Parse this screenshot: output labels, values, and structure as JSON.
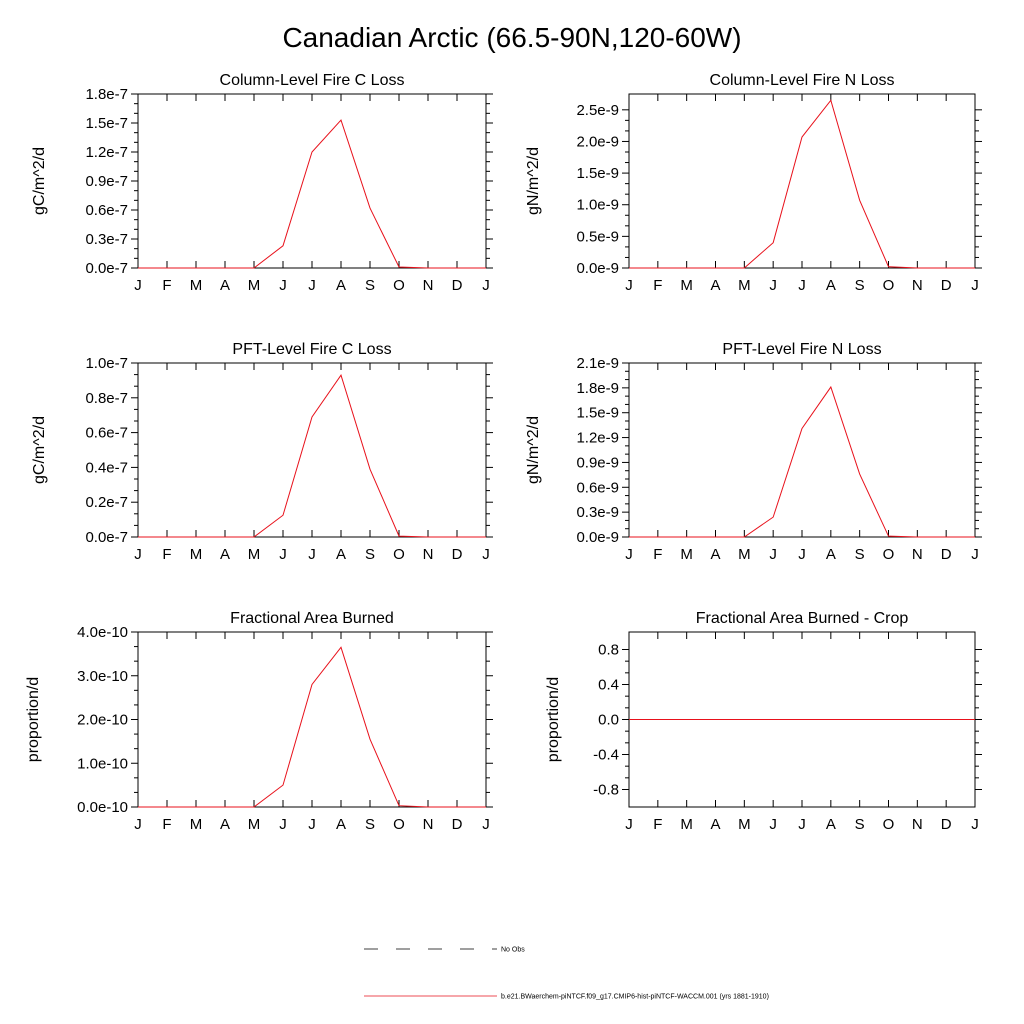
{
  "title": "Canadian Arctic (66.5-90N,120-60W)",
  "months": [
    "J",
    "F",
    "M",
    "A",
    "M",
    "J",
    "J",
    "A",
    "S",
    "O",
    "N",
    "D",
    "J"
  ],
  "line_color": "#e8111b",
  "legend": {
    "no_obs": "No Obs",
    "model": "b.e21.BWaerchem-piNTCF.f09_g17.CMIP6-hist-piNTCF-WACCM.001 (yrs 1881-1910)"
  },
  "chart_data": [
    {
      "type": "line",
      "title": "Column-Level Fire C Loss",
      "ylabel": "gC/m^2/d",
      "ylim": [
        0,
        1.8e-07
      ],
      "yticks": [
        0,
        3e-08,
        6e-08,
        9e-08,
        1.2e-07,
        1.5e-07,
        1.8e-07
      ],
      "ytick_labels": [
        "0.0e-7",
        "0.3e-7",
        "0.6e-7",
        "0.9e-7",
        "1.2e-7",
        "1.5e-7",
        "1.8e-7"
      ],
      "x": [
        "J",
        "F",
        "M",
        "A",
        "M",
        "J",
        "J",
        "A",
        "S",
        "O",
        "N",
        "D",
        "J"
      ],
      "series": [
        {
          "values": [
            0,
            0,
            0,
            0,
            0,
            2.3e-08,
            1.2e-07,
            1.53e-07,
            6.2e-08,
            1e-09,
            0,
            0,
            0
          ]
        }
      ]
    },
    {
      "type": "line",
      "title": "Column-Level Fire N Loss",
      "ylabel": "gN/m^2/d",
      "ylim": [
        0,
        2.75e-09
      ],
      "yticks": [
        0,
        5e-10,
        1e-09,
        1.5e-09,
        2e-09,
        2.5e-09
      ],
      "ytick_labels": [
        "0.0e-9",
        "0.5e-9",
        "1.0e-9",
        "1.5e-9",
        "2.0e-9",
        "2.5e-9"
      ],
      "x": [
        "J",
        "F",
        "M",
        "A",
        "M",
        "J",
        "J",
        "A",
        "S",
        "O",
        "N",
        "D",
        "J"
      ],
      "series": [
        {
          "values": [
            0,
            0,
            0,
            0,
            0,
            4e-10,
            2.07e-09,
            2.65e-09,
            1.07e-09,
            2e-11,
            0,
            0,
            0
          ]
        }
      ]
    },
    {
      "type": "line",
      "title": "PFT-Level Fire C Loss",
      "ylabel": "gC/m^2/d",
      "ylim": [
        0,
        1e-07
      ],
      "yticks": [
        0,
        2e-08,
        4e-08,
        6e-08,
        8e-08,
        1e-07
      ],
      "ytick_labels": [
        "0.0e-7",
        "0.2e-7",
        "0.4e-7",
        "0.6e-7",
        "0.8e-7",
        "1.0e-7"
      ],
      "x": [
        "J",
        "F",
        "M",
        "A",
        "M",
        "J",
        "J",
        "A",
        "S",
        "O",
        "N",
        "D",
        "J"
      ],
      "series": [
        {
          "values": [
            0,
            0,
            0,
            0,
            0,
            1.25e-08,
            6.9e-08,
            9.3e-08,
            3.9e-08,
            5e-10,
            0,
            0,
            0
          ]
        }
      ]
    },
    {
      "type": "line",
      "title": "PFT-Level Fire N Loss",
      "ylabel": "gN/m^2/d",
      "ylim": [
        0,
        2.1e-09
      ],
      "yticks": [
        0,
        3e-10,
        6e-10,
        9e-10,
        1.2e-09,
        1.5e-09,
        1.8e-09,
        2.1e-09
      ],
      "ytick_labels": [
        "0.0e-9",
        "0.3e-9",
        "0.6e-9",
        "0.9e-9",
        "1.2e-9",
        "1.5e-9",
        "1.8e-9",
        "2.1e-9"
      ],
      "x": [
        "J",
        "F",
        "M",
        "A",
        "M",
        "J",
        "J",
        "A",
        "S",
        "O",
        "N",
        "D",
        "J"
      ],
      "series": [
        {
          "values": [
            0,
            0,
            0,
            0,
            0,
            2.4e-10,
            1.31e-09,
            1.81e-09,
            7.6e-10,
            1e-11,
            0,
            0,
            0
          ]
        }
      ]
    },
    {
      "type": "line",
      "title": "Fractional Area Burned",
      "ylabel": "proportion/d",
      "ylim": [
        0,
        4e-10
      ],
      "yticks": [
        0,
        1e-10,
        2e-10,
        3e-10,
        4e-10
      ],
      "ytick_labels": [
        "0.0e-10",
        "1.0e-10",
        "2.0e-10",
        "3.0e-10",
        "4.0e-10"
      ],
      "x": [
        "J",
        "F",
        "M",
        "A",
        "M",
        "J",
        "J",
        "A",
        "S",
        "O",
        "N",
        "D",
        "J"
      ],
      "series": [
        {
          "values": [
            0,
            0,
            0,
            0,
            0,
            5e-11,
            2.8e-10,
            3.65e-10,
            1.55e-10,
            3e-12,
            0,
            0,
            0
          ]
        }
      ]
    },
    {
      "type": "line",
      "title": "Fractional Area Burned - Crop",
      "ylabel": "proportion/d",
      "ylim": [
        -1,
        1
      ],
      "yticks": [
        -0.8,
        -0.4,
        0,
        0.4,
        0.8
      ],
      "ytick_labels": [
        "-0.8",
        "-0.4",
        "0.0",
        "0.4",
        "0.8"
      ],
      "x": [
        "J",
        "F",
        "M",
        "A",
        "M",
        "J",
        "J",
        "A",
        "S",
        "O",
        "N",
        "D",
        "J"
      ],
      "series": [
        {
          "values": [
            0,
            0,
            0,
            0,
            0,
            0,
            0,
            0,
            0,
            0,
            0,
            0,
            0
          ]
        }
      ]
    }
  ]
}
